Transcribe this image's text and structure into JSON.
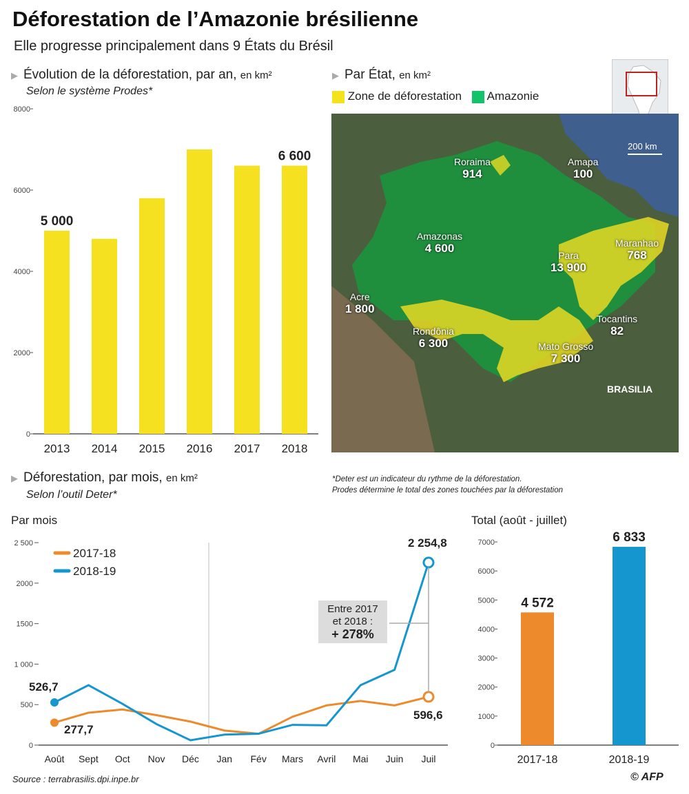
{
  "header": {
    "title": "Déforestation de l’Amazonie brésilienne",
    "subtitle": "Elle progresse principalement dans 9 États du Brésil"
  },
  "annual": {
    "heading": "Évolution de la déforestation, par an,",
    "unit": "en km²",
    "source_note": "Selon le système Prodes*"
  },
  "map_section": {
    "heading": "Par État,",
    "unit": "en km²",
    "legend": [
      {
        "label": "Zone de déforestation",
        "color": "#f4e21c"
      },
      {
        "label": "Amazonie",
        "color": "#12c36a"
      }
    ],
    "scale": "200 km",
    "capital": "BRASILIA",
    "states": [
      {
        "name": "Roraima",
        "value": "914"
      },
      {
        "name": "Amapa",
        "value": "100"
      },
      {
        "name": "Amazonas",
        "value": "4 600"
      },
      {
        "name": "Para",
        "value": "13 900"
      },
      {
        "name": "Maranhao",
        "value": "768"
      },
      {
        "name": "Acre",
        "value": "1 800"
      },
      {
        "name": "Tocantins",
        "value": "82"
      },
      {
        "name": "Rondônia",
        "value": "6 300"
      },
      {
        "name": "Mato Grosso",
        "value": "7 300"
      }
    ]
  },
  "monthly": {
    "heading": "Déforestation, par mois,",
    "unit": "en km²",
    "source_note": "Selon l’outil Deter*",
    "footnote_1": "*Deter est un indicateur du rythme de la déforestation.",
    "footnote_2": "Prodes détermine le total des zones touchées par la déforestation",
    "per_month_label": "Par mois",
    "total_label": "Total (août - juillet)",
    "callout_line1": "Entre 2017",
    "callout_line2": "et 2018 :",
    "callout_value": "+ 278%"
  },
  "footer": {
    "source": "Source : terrabrasilis.dpi.inpe.br",
    "credit": "© AFP"
  },
  "colors": {
    "yellow": "#f5e11f",
    "orange": "#ec8a2c",
    "blue": "#1596cf",
    "axis": "#555555"
  },
  "chart_data": [
    {
      "type": "bar",
      "categories": [
        "2013",
        "2014",
        "2015",
        "2016",
        "2017",
        "2018"
      ],
      "values": [
        5000,
        4800,
        5800,
        7000,
        6600,
        6600
      ],
      "data_labels": {
        "2013": "5 000",
        "2018": "6 600"
      },
      "ylim": [
        0,
        8000
      ],
      "yticks": [
        "0",
        "2000",
        "4000",
        "6000",
        "8000"
      ],
      "grid": false
    },
    {
      "type": "line",
      "categories": [
        "Août",
        "Sept",
        "Oct",
        "Nov",
        "Déc",
        "Jan",
        "Fév",
        "Mars",
        "Avril",
        "Mai",
        "Juin",
        "Juil"
      ],
      "series": [
        {
          "name": "2017-18",
          "values": [
            277.7,
            400,
            440,
            370,
            290,
            180,
            140,
            350,
            490,
            545,
            490,
            596.6
          ]
        },
        {
          "name": "2018-19",
          "values": [
            526.7,
            740,
            510,
            260,
            60,
            130,
            140,
            250,
            245,
            740,
            930,
            2254.8
          ]
        }
      ],
      "point_labels": {
        "start_2017": "277,7",
        "start_2018": "526,7",
        "end_2017": "596,6",
        "end_2018": "2 254,8"
      },
      "ylim": [
        0,
        2500
      ],
      "yticks": [
        "0",
        "500",
        "1 000",
        "1500",
        "2000",
        "2 500"
      ],
      "grid": "vertical at Jan"
    },
    {
      "type": "bar",
      "categories": [
        "2017-18",
        "2018-19"
      ],
      "values": [
        4572,
        6833
      ],
      "data_labels": [
        "4 572",
        "6 833"
      ],
      "ylim": [
        0,
        7000
      ],
      "yticks": [
        "0",
        "1000",
        "2000",
        "3000",
        "4000",
        "5000",
        "6000",
        "7000"
      ]
    }
  ]
}
